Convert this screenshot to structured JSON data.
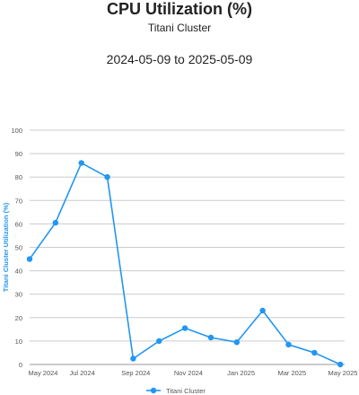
{
  "header": {
    "title": "CPU Utilization (%)",
    "subtitle": "Titani Cluster",
    "date_range": "2024-05-09 to 2025-05-09"
  },
  "colors": {
    "series": "#2196f3",
    "grid": "#cccccc",
    "axis_label": "#2196f3",
    "tick_text": "#555555"
  },
  "chart_data": {
    "type": "line",
    "title": "CPU Utilization (%)",
    "subtitle": "Titani Cluster",
    "xlabel": "",
    "ylabel": "Titani Cluster Utilization (%)",
    "ylim": [
      0,
      100
    ],
    "yticks": [
      0,
      10,
      20,
      30,
      40,
      50,
      60,
      70,
      80,
      90,
      100
    ],
    "xlim": [
      "2024-05-09",
      "2025-05-09"
    ],
    "xticks": [
      {
        "date": "2024-05-09",
        "label": "May 2024"
      },
      {
        "date": "2024-07-09",
        "label": "Jul 2024"
      },
      {
        "date": "2024-09-09",
        "label": "Sep 2024"
      },
      {
        "date": "2024-11-09",
        "label": "Nov 2024"
      },
      {
        "date": "2025-01-09",
        "label": "Jan 2025"
      },
      {
        "date": "2025-03-09",
        "label": "Mar 2025"
      },
      {
        "date": "2025-05-09",
        "label": "May 2025"
      }
    ],
    "grid": true,
    "legend_position": "bottom",
    "series": [
      {
        "name": "Titani Cluster",
        "points": [
          {
            "x": "2024-05-09",
            "y": 45
          },
          {
            "x": "2024-06-08",
            "y": 60.5
          },
          {
            "x": "2024-07-08",
            "y": 86
          },
          {
            "x": "2024-08-07",
            "y": 80
          },
          {
            "x": "2024-09-06",
            "y": 2.5
          },
          {
            "x": "2024-10-06",
            "y": 10
          },
          {
            "x": "2024-11-05",
            "y": 15.5
          },
          {
            "x": "2024-12-05",
            "y": 11.5
          },
          {
            "x": "2025-01-04",
            "y": 9.5
          },
          {
            "x": "2025-02-03",
            "y": 23
          },
          {
            "x": "2025-03-05",
            "y": 8.5
          },
          {
            "x": "2025-04-04",
            "y": 5
          },
          {
            "x": "2025-05-04",
            "y": 0
          }
        ]
      }
    ]
  }
}
